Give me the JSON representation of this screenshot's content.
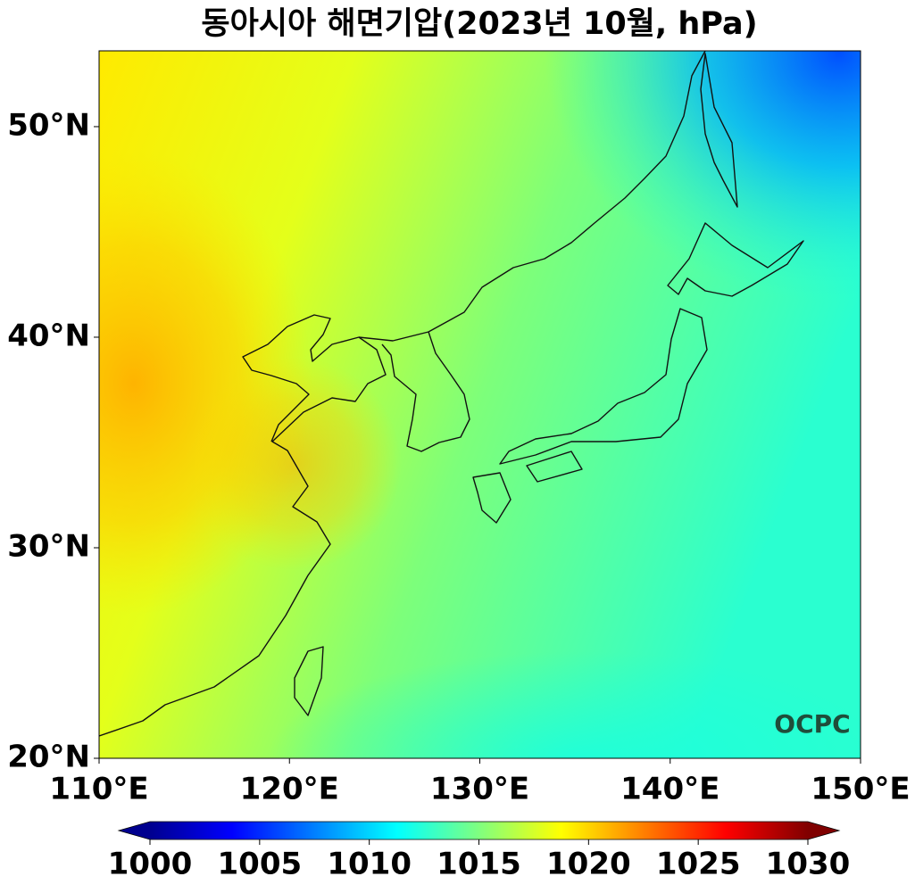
{
  "title": "동아시아 해면기압(2023년 10월, hPa)",
  "map": {
    "xlim": [
      110,
      150
    ],
    "ylim": [
      20,
      53.6
    ],
    "xticks": [
      {
        "value": 110,
        "label": "110°E"
      },
      {
        "value": 120,
        "label": "120°E"
      },
      {
        "value": 130,
        "label": "130°E"
      },
      {
        "value": 140,
        "label": "140°E"
      },
      {
        "value": 150,
        "label": "150°E"
      }
    ],
    "yticks": [
      {
        "value": 20,
        "label": "20°N"
      },
      {
        "value": 30,
        "label": "30°N"
      },
      {
        "value": 40,
        "label": "40°N"
      },
      {
        "value": 50,
        "label": "50°N"
      }
    ]
  },
  "colorbar": {
    "lim": [
      1000,
      1030
    ],
    "ticks": [
      1000,
      1005,
      1010,
      1015,
      1020,
      1025,
      1030
    ]
  },
  "logo": "OCPC"
}
